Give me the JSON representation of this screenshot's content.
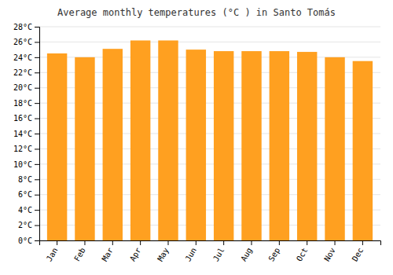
{
  "chart_data": {
    "type": "bar",
    "title": "Average monthly temperatures (°C ) in Santo Tomás",
    "categories": [
      "Jan",
      "Feb",
      "Mar",
      "Apr",
      "May",
      "Jun",
      "Jul",
      "Aug",
      "Sep",
      "Oct",
      "Nov",
      "Dec"
    ],
    "values": [
      24.5,
      24.0,
      25.1,
      26.2,
      26.2,
      25.0,
      24.8,
      24.8,
      24.8,
      24.7,
      24.0,
      23.5
    ],
    "color": "#FFA020",
    "ylim": [
      0,
      28
    ],
    "yticks": [
      {
        "value": 0,
        "label": "0°C"
      },
      {
        "value": 2,
        "label": "2°C"
      },
      {
        "value": 4,
        "label": "4°C"
      },
      {
        "value": 6,
        "label": "6°C"
      },
      {
        "value": 8,
        "label": "8°C"
      },
      {
        "value": 10,
        "label": "10°C"
      },
      {
        "value": 12,
        "label": "12°C"
      },
      {
        "value": 14,
        "label": "14°C"
      },
      {
        "value": 16,
        "label": "16°C"
      },
      {
        "value": 18,
        "label": "18°C"
      },
      {
        "value": 20,
        "label": "20°C"
      },
      {
        "value": 22,
        "label": "22°C"
      },
      {
        "value": 24,
        "label": "24°C"
      },
      {
        "value": 26,
        "label": "26°C"
      },
      {
        "value": 28,
        "label": "28°C"
      }
    ],
    "grid": true
  }
}
